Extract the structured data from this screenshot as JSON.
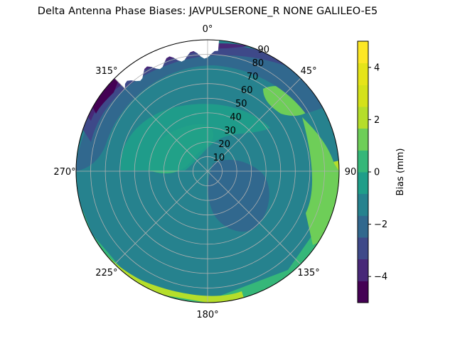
{
  "chart_data": {
    "type": "polar-contour",
    "title": "Delta Antenna Phase Biases: JAVPULSERONE_R  NONE GALILEO-E5",
    "theta_direction": "clockwise",
    "theta_zero": "top",
    "angle_ticks": [
      {
        "deg": 0,
        "label": "0°"
      },
      {
        "deg": 45,
        "label": "45°"
      },
      {
        "deg": 90,
        "label": "90"
      },
      {
        "deg": 135,
        "label": "135°"
      },
      {
        "deg": 180,
        "label": "180°"
      },
      {
        "deg": 225,
        "label": "225°"
      },
      {
        "deg": 270,
        "label": "270°"
      },
      {
        "deg": 315,
        "label": "315°"
      }
    ],
    "radial_ticks": [
      10,
      20,
      30,
      40,
      50,
      60,
      70,
      80,
      90
    ],
    "radial_range": [
      0,
      90
    ],
    "radial_label_angle_deg": 22.5,
    "grid": true,
    "colorbar": {
      "label": "Bias (mm)",
      "range": [
        -5,
        5
      ],
      "ticks": [
        -4,
        -2,
        0,
        2,
        4
      ],
      "levels": [
        -5,
        -4.17,
        -3.33,
        -2.5,
        -1.67,
        -0.83,
        0,
        0.83,
        1.67,
        2.5,
        3.33,
        4.17,
        5
      ],
      "colors": [
        "#440154",
        "#482878",
        "#3e4989",
        "#31688e",
        "#26828e",
        "#1f9e89",
        "#35b779",
        "#6ece58",
        "#b5de2b",
        "#d4e21a",
        "#e5e419",
        "#fde725"
      ]
    },
    "regions": [
      {
        "level": 0,
        "description": "base field",
        "color": "#26828e"
      },
      {
        "level": 1,
        "color": "#1f9e89"
      },
      {
        "level": 2,
        "color": "#35b779"
      }
    ],
    "missing_data_sector_deg": [
      315,
      5
    ],
    "missing_data_min_elevation": 80
  }
}
